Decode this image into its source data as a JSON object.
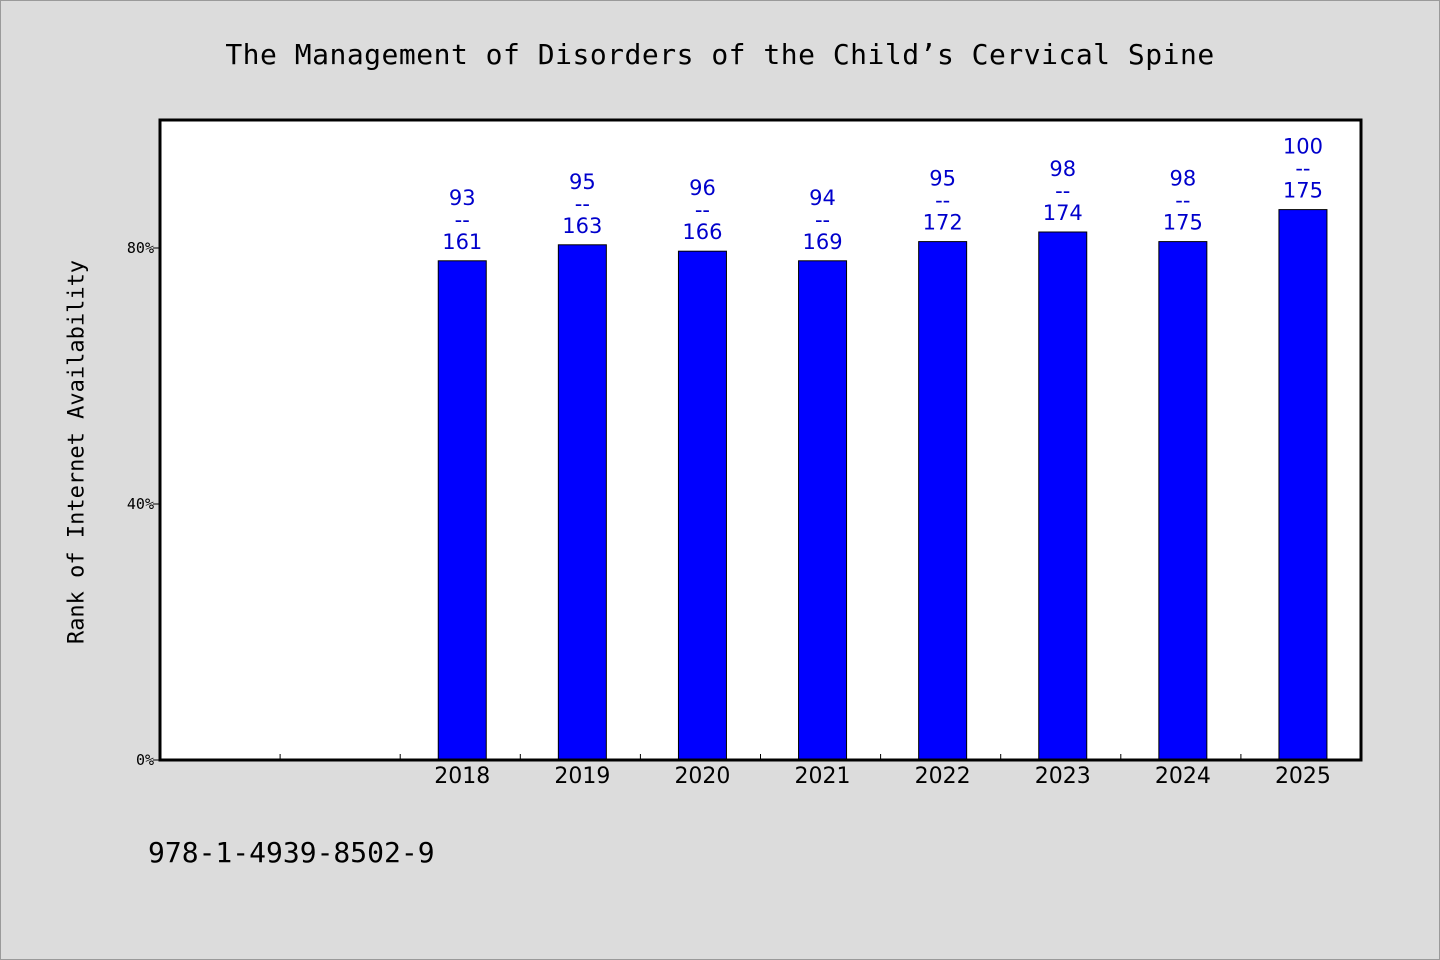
{
  "chart_data": {
    "type": "bar",
    "title": "The Management of Disorders of the Child’s Cervical Spine",
    "ylabel": "Rank of Internet Availability",
    "xlabel": "",
    "categories": [
      "",
      "",
      "2018",
      "2019",
      "2020",
      "2021",
      "2022",
      "2023",
      "2024",
      "2025"
    ],
    "values": [
      null,
      null,
      0.78,
      0.805,
      0.795,
      0.78,
      0.81,
      0.825,
      0.81,
      0.86
    ],
    "value_labels": [
      null,
      null,
      [
        "93",
        "--",
        "161"
      ],
      [
        "95",
        "--",
        "163"
      ],
      [
        "96",
        "--",
        "166"
      ],
      [
        "94",
        "--",
        "169"
      ],
      [
        "95",
        "--",
        "172"
      ],
      [
        "98",
        "--",
        "174"
      ],
      [
        "98",
        "--",
        "175"
      ],
      [
        "100",
        "--",
        "175"
      ]
    ],
    "y_ticks": [
      {
        "value": 0,
        "label": "0%"
      },
      {
        "value": 0.4,
        "label": "40%"
      },
      {
        "value": 0.8,
        "label": "80%"
      }
    ],
    "ylim": [
      0,
      1.0
    ],
    "grid": false,
    "legend": "none",
    "colors": {
      "bar": "#0000ff",
      "value_label": "#0000cc",
      "background": "#dcdcdc",
      "plot_background": "#ffffff"
    }
  },
  "footer": {
    "isbn": "978-1-4939-8502-9"
  }
}
